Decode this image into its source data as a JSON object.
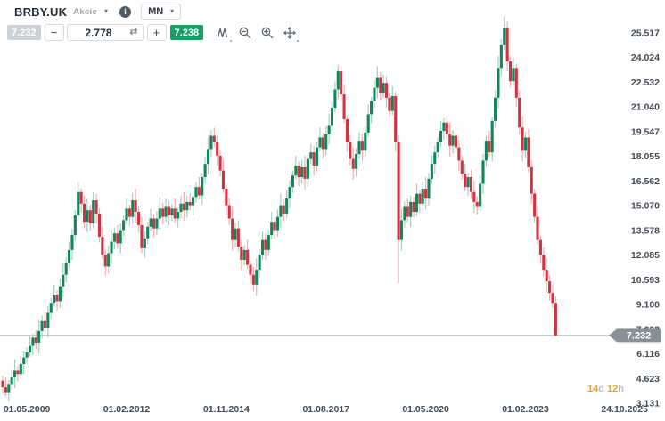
{
  "header": {
    "symbol": "BRBY.UK",
    "instrument_type": "Akcie",
    "timeframe": "MN",
    "info_glyph": "i",
    "caret_glyph": "▾"
  },
  "trade_bar": {
    "sell_price": "7.232",
    "buy_price": "7.238",
    "volume": "2.778",
    "minus_label": "−",
    "plus_label": "+",
    "swap_glyph": "⇄"
  },
  "countdown": {
    "value1": "14",
    "unit1": "d ",
    "value2": "12",
    "unit2": "h"
  },
  "chart_data": {
    "type": "candlestick",
    "symbol": "BRBY.UK",
    "timeframe": "monthly (MN)",
    "legend_position": "none",
    "grid": false,
    "current_price": 7.232,
    "current_price_label": "7.232",
    "price_line_value": 7.232,
    "y_axis_labels": [
      "25.517",
      "24.024",
      "22.532",
      "21.040",
      "19.547",
      "18.055",
      "16.562",
      "15.070",
      "13.578",
      "12.085",
      "10.593",
      "9.100",
      "7.608",
      "6.116",
      "4.623",
      "3.131"
    ],
    "x_axis_ticks": [
      {
        "label": "01.05.2009",
        "month_index": 8
      },
      {
        "label": "01.02.2012",
        "month_index": 41
      },
      {
        "label": "01.11.2014",
        "month_index": 74
      },
      {
        "label": "01.08.2017",
        "month_index": 107
      },
      {
        "label": "01.05.2020",
        "month_index": 140
      },
      {
        "label": "01.02.2023",
        "month_index": 173
      },
      {
        "label": "24.10.2025",
        "month_index": 205.8
      }
    ],
    "series_start": "2008-09",
    "interval": "1M",
    "first_open": 4.5,
    "closes": [
      4.1,
      3.8,
      4.3,
      4.7,
      5.1,
      4.9,
      5.5,
      5.9,
      6.2,
      6.6,
      7.1,
      6.8,
      7.5,
      8.1,
      7.7,
      8.6,
      9.2,
      9.7,
      9.3,
      10.2,
      10.9,
      11.6,
      12.4,
      13.3,
      14.5,
      15.9,
      15.2,
      14.1,
      14.8,
      14.0,
      15.4,
      14.6,
      13.2,
      12.1,
      11.4,
      12.2,
      12.9,
      13.4,
      12.8,
      13.6,
      14.2,
      14.9,
      14.4,
      15.4,
      14.7,
      13.9,
      12.5,
      13.1,
      13.8,
      14.3,
      13.7,
      14.3,
      14.9,
      14.4,
      15.0,
      14.5,
      14.9,
      14.3,
      14.7,
      15.2,
      14.8,
      15.3,
      15.1,
      15.6,
      16.2,
      15.7,
      16.8,
      17.6,
      18.5,
      19.3,
      18.9,
      18.1,
      17.2,
      16.1,
      15.1,
      14.3,
      13.0,
      13.7,
      12.6,
      11.8,
      12.4,
      11.5,
      10.9,
      10.3,
      11.2,
      12.1,
      13.0,
      12.4,
      13.3,
      14.1,
      13.6,
      14.4,
      15.1,
      14.6,
      15.5,
      16.2,
      16.9,
      17.5,
      16.8,
      17.4,
      16.7,
      17.9,
      18.3,
      17.5,
      18.6,
      19.2,
      18.5,
      19.4,
      19.9,
      21.0,
      22.1,
      23.2,
      21.8,
      20.3,
      18.9,
      17.9,
      17.3,
      18.2,
      19.0,
      18.4,
      19.5,
      20.6,
      21.4,
      22.2,
      22.8,
      21.9,
      22.5,
      21.6,
      20.8,
      21.7,
      18.9,
      13.0,
      14.2,
      15.0,
      14.4,
      15.3,
      14.7,
      15.8,
      15.2,
      16.1,
      15.5,
      16.7,
      17.6,
      18.3,
      18.9,
      19.6,
      20.1,
      19.4,
      18.7,
      19.3,
      18.6,
      17.8,
      17.0,
      16.2,
      16.8,
      15.9,
      15.3,
      15.0,
      16.4,
      17.8,
      19.0,
      18.3,
      20.2,
      21.6,
      23.4,
      24.8,
      25.8,
      23.8,
      22.6,
      23.4,
      21.6,
      19.8,
      18.4,
      19.2,
      17.4,
      15.8,
      14.4,
      13.0,
      12.1,
      11.2,
      10.5,
      9.8,
      9.2,
      7.232
    ],
    "wick_high_pattern": [
      0.3,
      0.6,
      0.25,
      0.45,
      0.7,
      0.35,
      0.5,
      0.4
    ],
    "wick_low_pattern": [
      0.45,
      0.3,
      0.6,
      0.35,
      0.25,
      0.55,
      0.4,
      0.65
    ],
    "special_wicks": {
      "131": {
        "low": 10.4
      },
      "166": {
        "high": 26.5
      },
      "183": {
        "low": 7.15
      }
    },
    "colors": {
      "up_body": "#12855A",
      "up_wick": "#A5CEBF",
      "down_body": "#D13440",
      "down_wick": "#EFAFB5",
      "price_line": "#A9AEB4",
      "price_tag_bg": "#878F98",
      "price_tag_text": "#FFFFFF",
      "axis_text": "#414C58",
      "countdown_accent": "#F59D27",
      "buy_badge": "#17A065",
      "sell_badge": "#CBD1D7"
    }
  }
}
